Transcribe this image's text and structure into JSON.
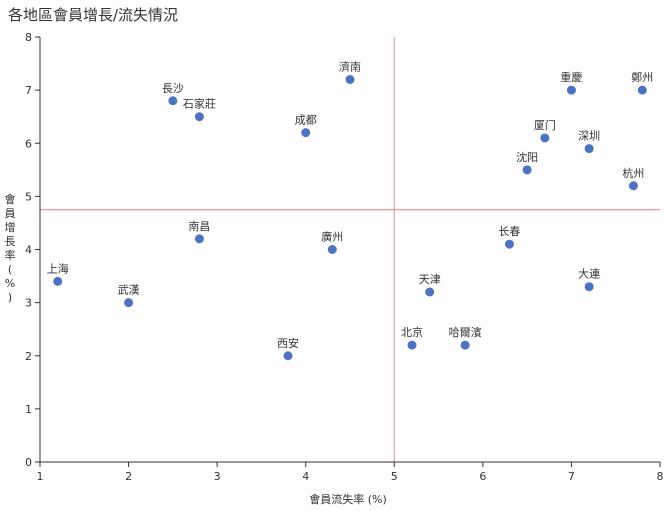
{
  "chart_data": {
    "type": "scatter",
    "title": "各地區會員增長/流失情況",
    "xlabel": "會員流失率 (%)",
    "ylabel": "會員增長率 (%)",
    "xlim": [
      1,
      8
    ],
    "ylim": [
      0,
      8
    ],
    "xticks": [
      "1",
      "2",
      "3",
      "4",
      "5",
      "6",
      "7",
      "8"
    ],
    "yticks": [
      "0",
      "1",
      "2",
      "3",
      "4",
      "5",
      "6",
      "7",
      "8"
    ],
    "reference_lines": {
      "x": 5.0,
      "y": 4.75,
      "color": "#e89aa0"
    },
    "point_color": "#4c72c4",
    "points": [
      {
        "label": "長沙",
        "x": 2.5,
        "y": 6.8
      },
      {
        "label": "石家莊",
        "x": 2.8,
        "y": 6.5
      },
      {
        "label": "濟南",
        "x": 4.5,
        "y": 7.2
      },
      {
        "label": "成都",
        "x": 4.0,
        "y": 6.2
      },
      {
        "label": "重慶",
        "x": 7.0,
        "y": 7.0
      },
      {
        "label": "鄭州",
        "x": 7.8,
        "y": 7.0
      },
      {
        "label": "厦门",
        "x": 6.7,
        "y": 6.1
      },
      {
        "label": "深圳",
        "x": 7.2,
        "y": 5.9
      },
      {
        "label": "沈阳",
        "x": 6.5,
        "y": 5.5
      },
      {
        "label": "杭州",
        "x": 7.7,
        "y": 5.2
      },
      {
        "label": "南昌",
        "x": 2.8,
        "y": 4.2
      },
      {
        "label": "廣州",
        "x": 4.3,
        "y": 4.0
      },
      {
        "label": "长春",
        "x": 6.3,
        "y": 4.1
      },
      {
        "label": "上海",
        "x": 1.2,
        "y": 3.4
      },
      {
        "label": "武漢",
        "x": 2.0,
        "y": 3.0
      },
      {
        "label": "天津",
        "x": 5.4,
        "y": 3.2
      },
      {
        "label": "大連",
        "x": 7.2,
        "y": 3.3
      },
      {
        "label": "北京",
        "x": 5.2,
        "y": 2.2
      },
      {
        "label": "哈爾濱",
        "x": 5.8,
        "y": 2.2
      },
      {
        "label": "西安",
        "x": 3.8,
        "y": 2.0
      }
    ]
  }
}
